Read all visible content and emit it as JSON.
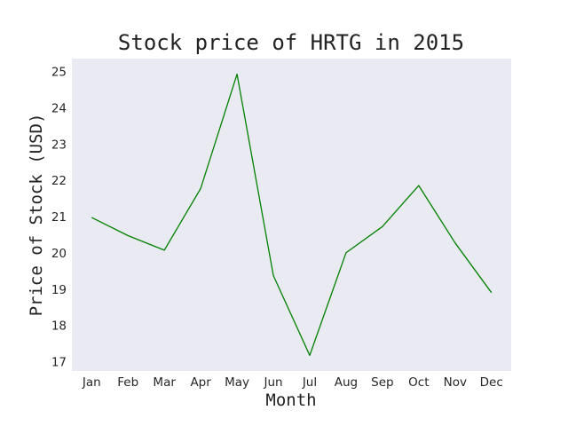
{
  "chart_data": {
    "type": "line",
    "title": "Stock price of HRTG in 2015",
    "xlabel": "Month",
    "ylabel": "Price of Stock (USD)",
    "categories": [
      "Jan",
      "Feb",
      "Mar",
      "Apr",
      "May",
      "Jun",
      "Jul",
      "Aug",
      "Sep",
      "Oct",
      "Nov",
      "Dec"
    ],
    "series": [
      {
        "values": [
          21.0,
          20.5,
          20.1,
          21.8,
          24.95,
          19.4,
          17.2,
          20.03,
          20.75,
          21.88,
          20.3,
          18.93
        ],
        "color": "#008000"
      }
    ],
    "yticks": [
      17,
      18,
      19,
      20,
      21,
      22,
      23,
      24,
      25
    ],
    "ylim": [
      16.77,
      25.38
    ],
    "grid": false,
    "legend": "none",
    "background_color": "#eaeaf2"
  }
}
